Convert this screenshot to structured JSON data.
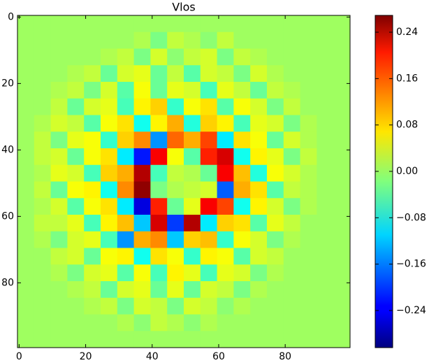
{
  "chart_data": {
    "type": "heatmap",
    "title": "Vlos",
    "colormap": "jet",
    "x": [
      2,
      7,
      12,
      17,
      22,
      27,
      32,
      37,
      42,
      47,
      52,
      57,
      62,
      67,
      72,
      77,
      82,
      87,
      92,
      97
    ],
    "y": [
      2,
      7,
      12,
      17,
      22,
      27,
      32,
      37,
      42,
      47,
      52,
      57,
      62,
      67,
      72,
      77,
      82,
      87,
      92,
      97
    ],
    "xlim": [
      -0.5,
      99.5
    ],
    "ylim": [
      99.5,
      -0.5
    ],
    "xticks": [
      0,
      20,
      40,
      60,
      80
    ],
    "yticks": [
      0,
      20,
      40,
      60,
      80
    ],
    "clim": [
      -0.304,
      0.269
    ],
    "cticks": [
      {
        "value": -0.24,
        "label": "−0.24"
      },
      {
        "value": -0.16,
        "label": "−0.16"
      },
      {
        "value": -0.08,
        "label": "−0.08"
      },
      {
        "value": 0,
        "label": "0.00"
      },
      0.08,
      0.16,
      0.24
    ],
    "z": [
      [
        0,
        0,
        0,
        0,
        0,
        0,
        0,
        0,
        0,
        0,
        0,
        0,
        0,
        0,
        0,
        0,
        0,
        0,
        0,
        0
      ],
      [
        0,
        0,
        0,
        0,
        0,
        0,
        0,
        0.01,
        -0.02,
        0.02,
        0.01,
        -0.01,
        0.02,
        0,
        0,
        0,
        0,
        0,
        0,
        0
      ],
      [
        0,
        0,
        0,
        0,
        0,
        0.01,
        0.02,
        -0.02,
        0.03,
        -0.01,
        0.02,
        0.03,
        -0.02,
        0.02,
        0.01,
        0,
        0,
        0,
        0,
        0
      ],
      [
        0,
        0,
        0,
        0.01,
        0.02,
        -0.03,
        0.03,
        0.04,
        -0.03,
        0.02,
        -0.04,
        0.03,
        0.02,
        -0.02,
        0.03,
        0.01,
        0,
        0,
        0,
        0
      ],
      [
        0,
        0,
        0.01,
        0.02,
        -0.02,
        0.03,
        -0.04,
        0.05,
        -0.03,
        0.04,
        0.03,
        -0.05,
        0.04,
        0.02,
        -0.03,
        0.02,
        0.01,
        0,
        0,
        0
      ],
      [
        0,
        0,
        0.02,
        -0.03,
        0.03,
        0.04,
        -0.05,
        0.06,
        0.08,
        -0.06,
        0.05,
        0.07,
        -0.04,
        0.05,
        0.03,
        -0.02,
        0.02,
        0,
        0,
        0
      ],
      [
        0,
        0.01,
        0.03,
        0.02,
        -0.04,
        0.05,
        0.07,
        -0.08,
        0.06,
        0.1,
        -0.07,
        0.08,
        0.06,
        -0.05,
        0.04,
        0.03,
        -0.02,
        0.01,
        0,
        0
      ],
      [
        0,
        0.02,
        -0.02,
        0.04,
        0.05,
        -0.06,
        0.08,
        0.12,
        -0.15,
        0.14,
        0.1,
        0.16,
        -0.1,
        0.07,
        0.05,
        -0.03,
        0.03,
        0.01,
        0,
        0
      ],
      [
        0,
        0.02,
        0.03,
        -0.03,
        0.05,
        0.07,
        -0.1,
        -0.22,
        0.2,
        0.05,
        -0.04,
        0.18,
        0.22,
        -0.08,
        0.06,
        0.04,
        -0.02,
        0.02,
        0,
        0
      ],
      [
        0,
        0.01,
        0.04,
        0.03,
        -0.05,
        0.08,
        0.1,
        0.24,
        -0.05,
        0.02,
        0.01,
        -0.03,
        0.2,
        0.09,
        -0.07,
        0.05,
        0.03,
        0.01,
        0,
        0
      ],
      [
        0,
        0.02,
        -0.03,
        0.05,
        0.06,
        -0.08,
        0.12,
        0.26,
        -0.02,
        0.01,
        0.02,
        0.03,
        -0.18,
        0.1,
        0.07,
        -0.04,
        0.02,
        0.01,
        0,
        0
      ],
      [
        0,
        0.01,
        0.03,
        -0.04,
        0.05,
        0.07,
        -0.1,
        -0.25,
        0.18,
        -0.03,
        0.04,
        0.2,
        0.16,
        -0.08,
        0.06,
        0.03,
        -0.02,
        0.01,
        0,
        0
      ],
      [
        0,
        0.02,
        0.02,
        0.04,
        -0.05,
        0.06,
        0.09,
        -0.12,
        0.22,
        -0.2,
        0.24,
        -0.1,
        0.08,
        0.07,
        -0.04,
        0.04,
        0.02,
        0,
        0,
        0
      ],
      [
        0,
        0.01,
        -0.02,
        0.03,
        0.04,
        -0.05,
        -0.15,
        0.1,
        0.12,
        -0.12,
        0.08,
        0.09,
        -0.06,
        0.05,
        0.03,
        -0.02,
        0.01,
        0,
        0,
        0
      ],
      [
        0,
        0,
        0.02,
        0.03,
        -0.03,
        0.05,
        0.06,
        -0.08,
        0.07,
        0.05,
        -0.06,
        0.06,
        0.05,
        -0.04,
        0.03,
        0.02,
        0,
        0,
        0,
        0
      ],
      [
        0,
        0,
        0.01,
        -0.02,
        0.03,
        0.04,
        -0.04,
        0.05,
        -0.05,
        0.06,
        0.04,
        -0.05,
        0.04,
        0.03,
        -0.02,
        0.01,
        0,
        0,
        0,
        0
      ],
      [
        0,
        0,
        0,
        0.01,
        0.02,
        -0.03,
        0.03,
        0.04,
        -0.03,
        0.04,
        -0.03,
        0.03,
        0.02,
        -0.02,
        0.01,
        0,
        0,
        0,
        0,
        0
      ],
      [
        0,
        0,
        0,
        0,
        0.01,
        0.02,
        -0.02,
        0.03,
        0.02,
        -0.02,
        0.03,
        0.02,
        -0.01,
        0.01,
        0,
        0,
        0,
        0,
        0,
        0
      ],
      [
        0,
        0,
        0,
        0,
        0,
        0,
        0.01,
        -0.01,
        0.02,
        0.01,
        -0.01,
        0.01,
        0,
        0,
        0,
        0,
        0,
        0,
        0,
        0
      ],
      [
        0,
        0,
        0,
        0,
        0,
        0,
        0,
        0,
        0,
        0,
        0,
        0,
        0,
        0,
        0,
        0,
        0,
        0,
        0,
        0
      ]
    ]
  }
}
